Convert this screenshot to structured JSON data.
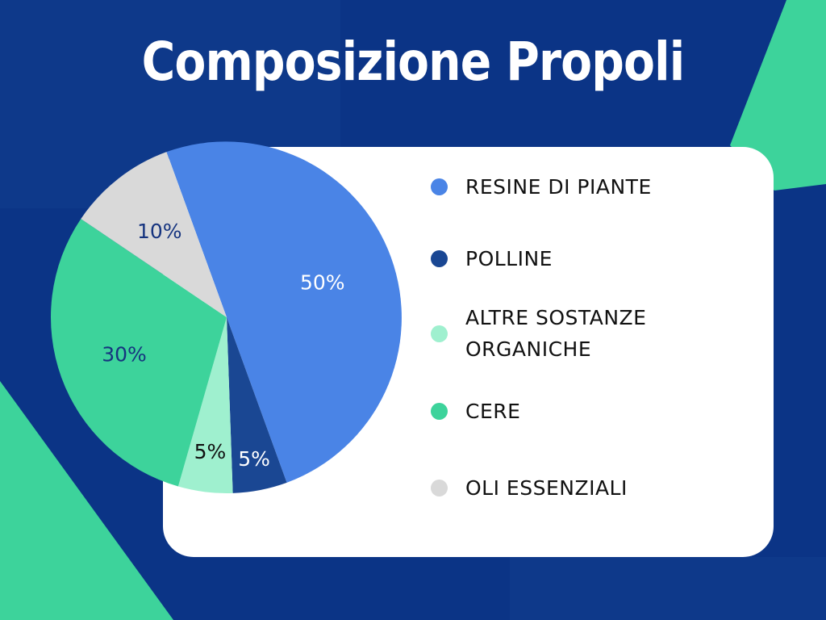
{
  "title": "Composizione Propoli",
  "colors": {
    "background": "#0b3486",
    "accent_green": "#3dd39b",
    "card": "#ffffff"
  },
  "chart_data": {
    "type": "pie",
    "title": "Composizione Propoli",
    "legend_position": "right",
    "slices": [
      {
        "label": "RESINE DI PIANTE",
        "value": 50,
        "display": "50%",
        "color": "#4a84e6",
        "label_color": "#ffffff"
      },
      {
        "label": "POLLINE",
        "value": 5,
        "display": "5%",
        "color": "#1a4793",
        "label_color": "#ffffff"
      },
      {
        "label": "ALTRE SOSTANZE ORGANICHE",
        "value": 5,
        "display": "5%",
        "color": "#9ff0cf",
        "label_color": "#111111"
      },
      {
        "label": "CERE",
        "value": 30,
        "display": "30%",
        "color": "#3dd39b",
        "label_color": "#16347f"
      },
      {
        "label": "OLI ESSENZIALI",
        "value": 10,
        "display": "10%",
        "color": "#d9d9d9",
        "label_color": "#16347f"
      }
    ]
  }
}
